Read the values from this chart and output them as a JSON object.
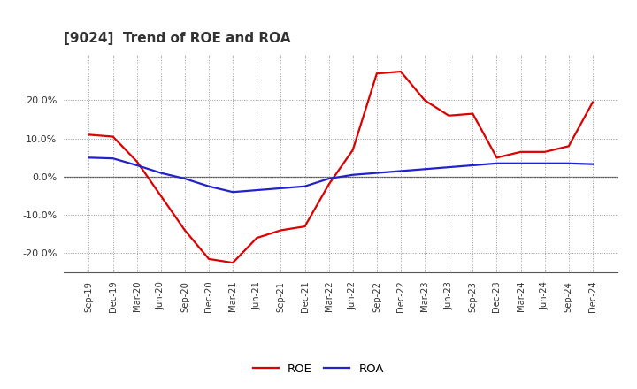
{
  "title": "[9024]  Trend of ROE and ROA",
  "x_labels": [
    "Sep-19",
    "Dec-19",
    "Mar-20",
    "Jun-20",
    "Sep-20",
    "Dec-20",
    "Mar-21",
    "Jun-21",
    "Sep-21",
    "Dec-21",
    "Mar-22",
    "Jun-22",
    "Sep-22",
    "Dec-22",
    "Mar-23",
    "Jun-23",
    "Sep-23",
    "Dec-23",
    "Mar-24",
    "Jun-24",
    "Sep-24",
    "Dec-24"
  ],
  "roe": [
    11.0,
    10.5,
    4.0,
    -5.0,
    -14.0,
    -21.5,
    -22.5,
    -16.0,
    -14.0,
    -13.0,
    -2.0,
    7.0,
    27.0,
    27.5,
    20.0,
    16.0,
    16.5,
    5.0,
    6.5,
    6.5,
    8.0,
    19.5
  ],
  "roa": [
    5.0,
    4.8,
    3.0,
    1.0,
    -0.5,
    -2.5,
    -4.0,
    -3.5,
    -3.0,
    -2.5,
    -0.5,
    0.5,
    1.0,
    1.5,
    2.0,
    2.5,
    3.0,
    3.5,
    3.5,
    3.5,
    3.5,
    3.3
  ],
  "roe_color": "#dd0000",
  "roa_color": "#2222cc",
  "ylim": [
    -25,
    32
  ],
  "yticks": [
    -20,
    -10,
    0,
    10,
    20
  ],
  "background_color": "#ffffff",
  "grid_color": "#999999",
  "legend_roe": "ROE",
  "legend_roa": "ROA",
  "title_color": "#333333",
  "spine_color": "#555555"
}
